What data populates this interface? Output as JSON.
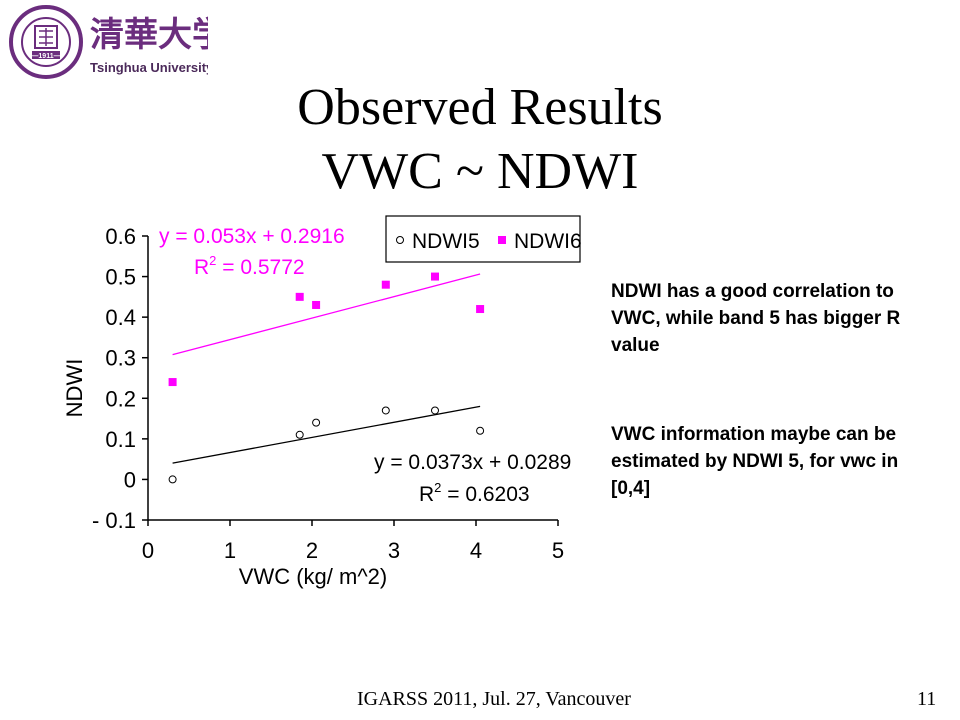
{
  "logo": {
    "name_cn": "清華大学",
    "name_en": "Tsinghua University",
    "seal_text": "TSINGHUA UNIVERSITY",
    "seal_year": "1911"
  },
  "title": {
    "line1": "Observed Results",
    "line2": "VWC ~ NDWI"
  },
  "notes": [
    "NDWI has a good correlation to VWC, while band 5 has bigger R value",
    "VWC information maybe can be estimated by NDWI 5,  for vwc in [0,4]"
  ],
  "footer": {
    "text": "IGARSS 2011, Jul. 27, Vancouver",
    "page": "11"
  },
  "colors": {
    "ndwi6": "#ff00ff",
    "ndwi5": "#000000",
    "logo_purple": "#6b2d7e"
  },
  "chart_data": {
    "type": "scatter",
    "xlabel": "VWC (kg/ m^2)",
    "ylabel": "NDWI",
    "xlim": [
      0,
      5
    ],
    "ylim": [
      -0.1,
      0.6
    ],
    "xticks": [
      "0",
      "1",
      "2",
      "3",
      "4",
      "5"
    ],
    "yticks": [
      "- 0.1",
      "0",
      "0.1",
      "0.2",
      "0.3",
      "0.4",
      "0.5",
      "0.6"
    ],
    "grid": false,
    "legend_position": "top-right",
    "series": [
      {
        "name": "NDWI5",
        "marker": "open-circle",
        "x": [
          0.3,
          1.85,
          2.05,
          2.9,
          3.5,
          4.05
        ],
        "y": [
          0.0,
          0.11,
          0.14,
          0.17,
          0.17,
          0.12
        ],
        "trend": {
          "slope": 0.0373,
          "intercept": 0.0289,
          "x_range": [
            0.3,
            4.05
          ]
        },
        "equation": "y = 0.0373x + 0.0289",
        "r2_label": "R",
        "r2_value": " = 0.6203"
      },
      {
        "name": "NDWI6",
        "marker": "filled-square",
        "x": [
          0.3,
          1.85,
          2.05,
          2.9,
          3.5,
          4.05
        ],
        "y": [
          0.24,
          0.45,
          0.43,
          0.48,
          0.5,
          0.42
        ],
        "trend": {
          "slope": 0.053,
          "intercept": 0.2916,
          "x_range": [
            0.3,
            4.05
          ]
        },
        "equation": "y = 0.053x + 0.2916",
        "r2_label": "R",
        "r2_value": " = 0.5772"
      }
    ],
    "r2_superscript": "2"
  }
}
